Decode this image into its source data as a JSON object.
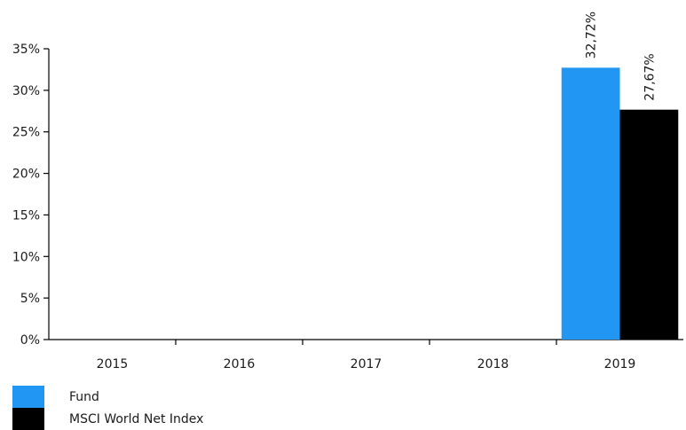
{
  "chart_data": {
    "type": "bar",
    "categories": [
      "2015",
      "2016",
      "2017",
      "2018",
      "2019"
    ],
    "series": [
      {
        "name": "Fund",
        "values": [
          null,
          null,
          null,
          null,
          32.72
        ],
        "labels": [
          "",
          "",
          "",
          "",
          "32,72%"
        ],
        "color": "#2196F3"
      },
      {
        "name": "MSCI World Net Index",
        "values": [
          null,
          null,
          null,
          null,
          27.67
        ],
        "labels": [
          "",
          "",
          "",
          "",
          "27,67%"
        ],
        "color": "#000000"
      }
    ],
    "yticks": [
      {
        "value": 0,
        "label": "0%"
      },
      {
        "value": 5,
        "label": "5%"
      },
      {
        "value": 10,
        "label": "10%"
      },
      {
        "value": 15,
        "label": "15%"
      },
      {
        "value": 20,
        "label": "20%"
      },
      {
        "value": 25,
        "label": "25%"
      },
      {
        "value": 30,
        "label": "30%"
      },
      {
        "value": 35,
        "label": "35%"
      }
    ],
    "ylim": [
      0,
      35
    ],
    "title": "",
    "xlabel": "",
    "ylabel": "",
    "grid": false,
    "legend_position": "bottom-left"
  }
}
